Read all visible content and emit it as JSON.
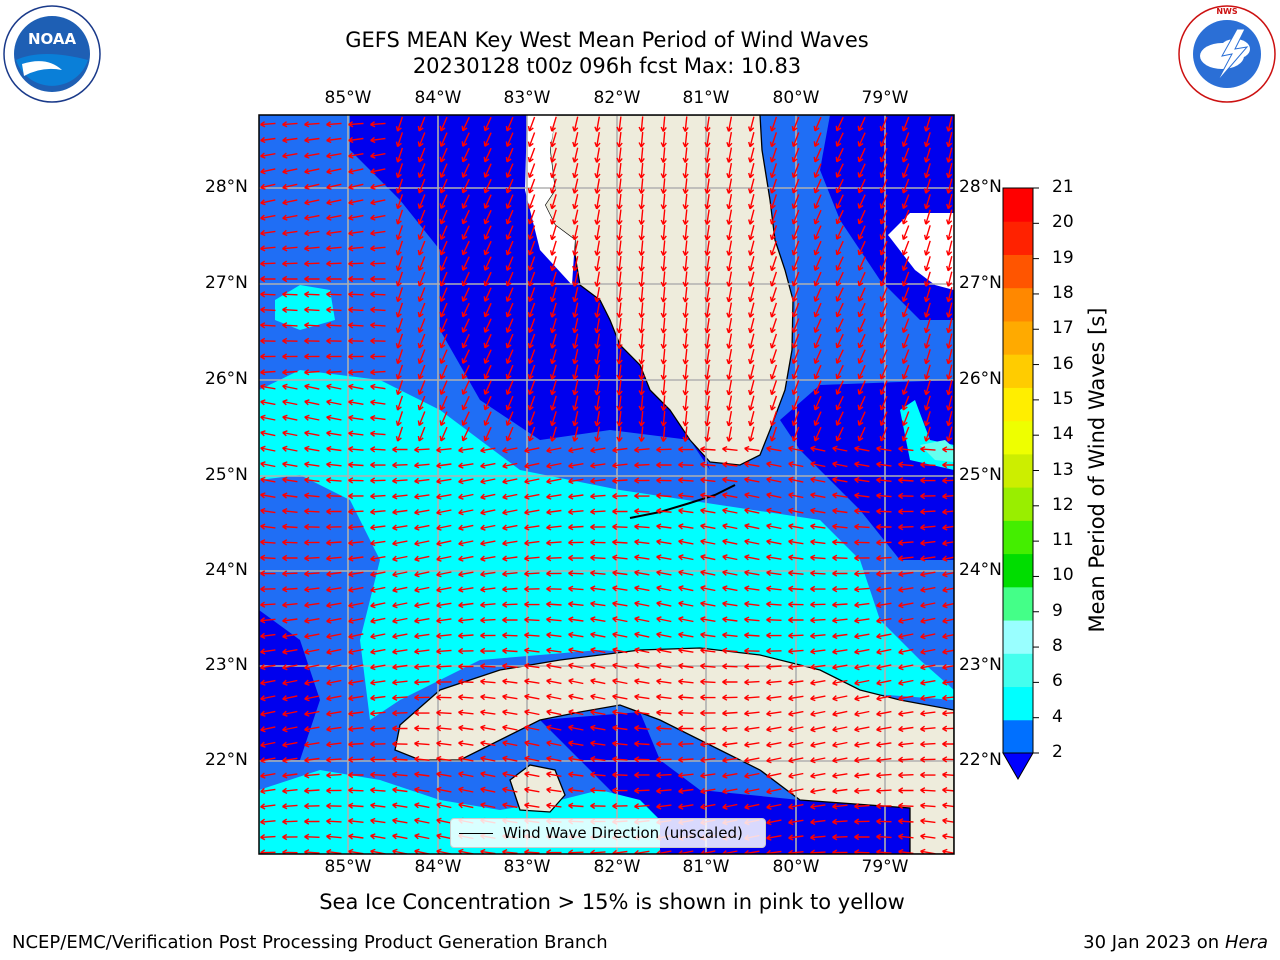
{
  "header": {
    "title_line1": "GEFS MEAN Key West Mean Period of Wind Waves",
    "title_line2": "20230128 t00z 096h fcst   Max: 10.83"
  },
  "logos": {
    "left": {
      "name": "NOAA",
      "text": "NOAA",
      "ring_text": "NATIONAL OCEANIC AND ATMOSPHERIC ADMINISTRATION · U.S. DEPARTMENT OF COMMERCE"
    },
    "right": {
      "name": "National Weather Service",
      "ring_text": "NATIONAL WEATHER SERVICE"
    }
  },
  "map": {
    "longitude_labels": [
      "85°W",
      "84°W",
      "83°W",
      "82°W",
      "81°W",
      "80°W",
      "79°W"
    ],
    "latitude_labels": [
      "28°N",
      "27°N",
      "26°N",
      "25°N",
      "24°N",
      "23°N",
      "22°N"
    ],
    "legend_label": "Wind Wave Direction (unscaled)",
    "land_color": "#eeecdc",
    "arrow_color": "#ff0000",
    "grid_color": "#b0b0b0"
  },
  "colorbar": {
    "label": "Mean Period of Wind Waves [s]",
    "ticks": [
      "2",
      "4",
      "6",
      "8",
      "9",
      "10",
      "11",
      "12",
      "13",
      "14",
      "15",
      "16",
      "17",
      "18",
      "19",
      "20",
      "21"
    ],
    "colors": [
      "#0000ff",
      "#0070ff",
      "#00ffff",
      "#44ffee",
      "#99ffff",
      "#44ff88",
      "#00dd00",
      "#44ee00",
      "#99ee00",
      "#ccee00",
      "#eeff00",
      "#ffee00",
      "#ffcc00",
      "#ffaa00",
      "#ff8800",
      "#ff5500",
      "#ff2200",
      "#ff0000"
    ]
  },
  "note": "Sea Ice Concentration > 15% is shown in pink to yellow",
  "footer": {
    "left": "NCEP/EMC/Verification Post Processing Product Generation Branch",
    "right_date": "30 Jan 2023 on",
    "right_machine": "Hera"
  }
}
